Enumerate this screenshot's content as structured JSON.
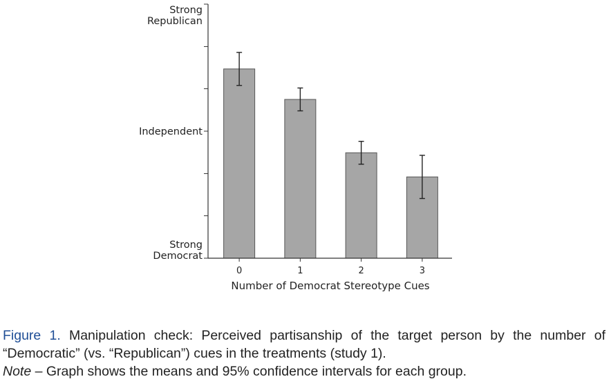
{
  "chart_data": {
    "type": "bar",
    "categories": [
      "0",
      "1",
      "2",
      "3"
    ],
    "values": [
      0.745,
      0.625,
      0.415,
      0.32
    ],
    "error_low": [
      0.68,
      0.58,
      0.37,
      0.235
    ],
    "error_high": [
      0.81,
      0.67,
      0.46,
      0.405
    ],
    "xlabel": "Number of Democrat Stereotype Cues",
    "ylabel": "",
    "ylim": [
      0,
      1
    ],
    "y_tick_values": [
      0,
      0.167,
      0.333,
      0.5,
      0.667,
      0.833,
      1
    ],
    "y_labels": [
      {
        "value": 1,
        "lines": [
          "Strong",
          "Republican"
        ]
      },
      {
        "value": 0.5,
        "lines": [
          "Independent"
        ]
      },
      {
        "value": 0,
        "lines": [
          "Strong",
          "Democrat"
        ]
      }
    ],
    "grid": false,
    "bar_color": "#a6a6a6",
    "bar_edge_color": "#555555"
  },
  "caption": {
    "figure_label": "Figure 1.",
    "line1": "Manipulation check: Perceived partisanship of the target person by the number of",
    "line2": "“Democratic” (vs. “Republican”) cues in the treatments (study 1).",
    "note_label": "Note",
    "note_text": " – Graph shows the means and 95% confidence intervals for each group."
  }
}
